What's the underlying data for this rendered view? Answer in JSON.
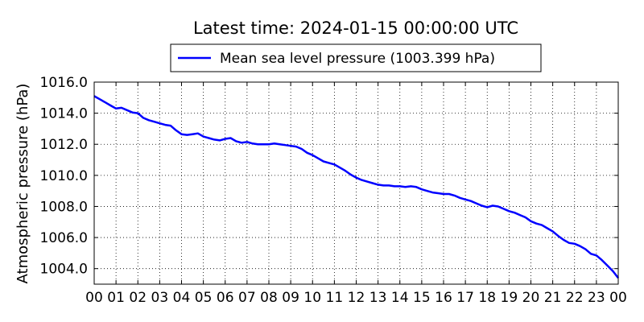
{
  "chart_data": {
    "type": "line",
    "title": "Latest time: 2024-01-15 00:00:00 UTC",
    "xlabel": "",
    "ylabel": "Atmospheric pressure (hPa)",
    "xlim": [
      0,
      24
    ],
    "ylim": [
      1003.0,
      1016.0
    ],
    "grid": true,
    "legend_position": "top-center",
    "x_tick_labels": [
      "00",
      "01",
      "02",
      "03",
      "04",
      "05",
      "06",
      "07",
      "08",
      "09",
      "10",
      "11",
      "12",
      "13",
      "14",
      "15",
      "16",
      "17",
      "18",
      "19",
      "20",
      "21",
      "22",
      "23",
      "00"
    ],
    "y_ticks": [
      1004.0,
      1006.0,
      1008.0,
      1010.0,
      1012.0,
      1014.0,
      1016.0
    ],
    "y_tick_labels": [
      "1004.0",
      "1006.0",
      "1008.0",
      "1010.0",
      "1012.0",
      "1014.0",
      "1016.0"
    ],
    "series": [
      {
        "name": "Mean sea level pressure (1003.399 hPa)",
        "color": "#0000ff",
        "x": [
          0,
          0.25,
          0.5,
          0.75,
          1,
          1.25,
          1.5,
          1.75,
          2,
          2.25,
          2.5,
          2.75,
          3,
          3.25,
          3.5,
          3.75,
          4,
          4.25,
          4.5,
          4.75,
          5,
          5.25,
          5.5,
          5.75,
          6,
          6.25,
          6.5,
          6.75,
          7,
          7.25,
          7.5,
          7.75,
          8,
          8.25,
          8.5,
          8.75,
          9,
          9.25,
          9.5,
          9.75,
          10,
          10.25,
          10.5,
          10.75,
          11,
          11.25,
          11.5,
          11.75,
          12,
          12.25,
          12.5,
          12.75,
          13,
          13.25,
          13.5,
          13.75,
          14,
          14.25,
          14.5,
          14.75,
          15,
          15.25,
          15.5,
          15.75,
          16,
          16.25,
          16.5,
          16.75,
          17,
          17.25,
          17.5,
          17.75,
          18,
          18.25,
          18.5,
          18.75,
          19,
          19.25,
          19.5,
          19.75,
          20,
          20.25,
          20.5,
          20.75,
          21,
          21.25,
          21.5,
          21.75,
          22,
          22.25,
          22.5,
          22.75,
          23,
          23.25,
          23.5,
          23.75,
          24
        ],
        "values": [
          1015.1,
          1014.9,
          1014.7,
          1014.5,
          1014.3,
          1014.35,
          1014.2,
          1014.05,
          1014.0,
          1013.7,
          1013.55,
          1013.45,
          1013.35,
          1013.25,
          1013.2,
          1012.9,
          1012.65,
          1012.6,
          1012.65,
          1012.7,
          1012.5,
          1012.4,
          1012.3,
          1012.25,
          1012.35,
          1012.4,
          1012.2,
          1012.1,
          1012.15,
          1012.05,
          1012.0,
          1012.0,
          1012.0,
          1012.05,
          1012.0,
          1011.95,
          1011.9,
          1011.85,
          1011.7,
          1011.45,
          1011.3,
          1011.1,
          1010.9,
          1010.8,
          1010.7,
          1010.5,
          1010.3,
          1010.05,
          1009.85,
          1009.7,
          1009.6,
          1009.5,
          1009.4,
          1009.35,
          1009.35,
          1009.3,
          1009.3,
          1009.25,
          1009.3,
          1009.25,
          1009.1,
          1009.0,
          1008.9,
          1008.85,
          1008.8,
          1008.8,
          1008.7,
          1008.55,
          1008.45,
          1008.35,
          1008.2,
          1008.05,
          1007.95,
          1008.05,
          1008.0,
          1007.85,
          1007.7,
          1007.6,
          1007.45,
          1007.3,
          1007.05,
          1006.9,
          1006.8,
          1006.6,
          1006.4,
          1006.1,
          1005.85,
          1005.65,
          1005.6,
          1005.45,
          1005.25,
          1004.95,
          1004.85,
          1004.55,
          1004.2,
          1003.85,
          1003.399
        ]
      }
    ]
  }
}
